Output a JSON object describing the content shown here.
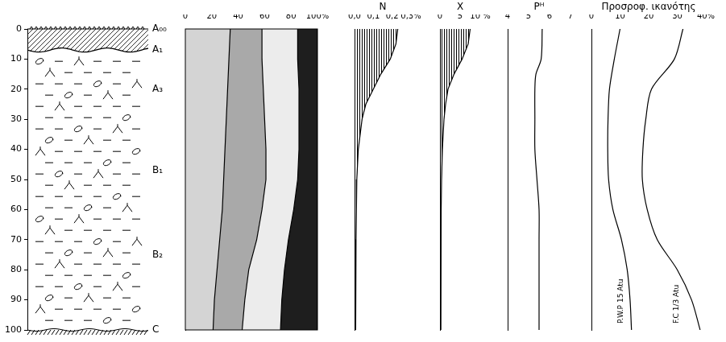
{
  "chart_data": [
    {
      "type": "profile",
      "ylim": [
        0,
        100
      ],
      "yticks": [
        0,
        10,
        20,
        30,
        40,
        50,
        60,
        70,
        80,
        90,
        100
      ],
      "tick_labels": "y",
      "horizons": [
        {
          "label": "A₀₀",
          "depth": 0
        },
        {
          "label": "A₁",
          "depth": 7
        },
        {
          "label": "A₃",
          "depth": 20
        },
        {
          "label": "B₁",
          "depth": 47
        },
        {
          "label": "B₂",
          "depth": 75
        },
        {
          "label": "C",
          "depth": 100
        }
      ]
    },
    {
      "type": "area",
      "stacked": true,
      "orientation": "horizontal",
      "tick_labels": "x",
      "xlim": [
        0,
        100
      ],
      "xticks": [
        0,
        20,
        40,
        60,
        80,
        {
          "value": 100,
          "label": "100%"
        }
      ],
      "ylim": [
        0,
        100
      ],
      "y": [
        0,
        10,
        20,
        30,
        40,
        50,
        60,
        70,
        80,
        90,
        100
      ],
      "series": [
        {
          "color": "#d4d4d4",
          "values": [
            34,
            33,
            32,
            31,
            30,
            29,
            28,
            26,
            24,
            22,
            21
          ]
        },
        {
          "color": "#a9a9a9",
          "values": [
            24,
            25,
            27,
            29,
            31,
            32,
            30,
            28,
            24,
            23,
            22
          ]
        },
        {
          "color": "#ececec",
          "values": [
            27,
            27,
            27,
            26,
            25,
            24,
            24,
            24,
            27,
            28,
            29
          ]
        },
        {
          "color": "#1e1e1e",
          "values": [
            15,
            15,
            14,
            14,
            14,
            15,
            18,
            22,
            25,
            27,
            28
          ]
        }
      ]
    },
    {
      "type": "area",
      "title": "N",
      "orientation": "horizontal",
      "tick_labels": "x",
      "xlim": [
        0,
        0.3
      ],
      "xticks": [
        {
          "value": 0,
          "label": "0,0"
        },
        {
          "value": 0.1,
          "label": "0,1"
        },
        {
          "value": 0.2,
          "label": "0,2"
        },
        {
          "value": 0.3,
          "label": "0,3%"
        }
      ],
      "ylim": [
        0,
        100
      ],
      "y": [
        0,
        5,
        10,
        15,
        20,
        25,
        30,
        40,
        50,
        60,
        70,
        80,
        90,
        100
      ],
      "series": [
        {
          "color": "#000000",
          "values": [
            0.23,
            0.22,
            0.19,
            0.14,
            0.1,
            0.06,
            0.04,
            0.02,
            0.012,
            0.01,
            0.008,
            0.007,
            0.006,
            0.005
          ]
        }
      ]
    },
    {
      "type": "area",
      "title": "X",
      "orientation": "horizontal",
      "tick_labels": "x",
      "xlim": [
        0,
        10
      ],
      "xticks": [
        0,
        5,
        {
          "value": 10,
          "label": "10 %"
        }
      ],
      "ylim": [
        0,
        100
      ],
      "y": [
        0,
        5,
        10,
        15,
        20,
        25,
        30,
        40,
        50,
        60,
        70,
        80,
        90,
        100
      ],
      "series": [
        {
          "color": "#000000",
          "values": [
            7.5,
            7,
            5.5,
            3.5,
            2,
            1.4,
            1,
            0.6,
            0.4,
            0.3,
            0.3,
            0.25,
            0.2,
            0.2
          ]
        }
      ]
    },
    {
      "type": "line",
      "title": "Pᴴ",
      "orientation": "horizontal",
      "tick_labels": "x",
      "xlim": [
        4,
        7
      ],
      "xticks": [
        4,
        5,
        6,
        7
      ],
      "ylim": [
        0,
        100
      ],
      "y": [
        0,
        10,
        15,
        20,
        30,
        40,
        50,
        60,
        70,
        80,
        90,
        100
      ],
      "series": [
        {
          "color": "#000000",
          "values": [
            5.65,
            5.6,
            5.35,
            5.3,
            5.3,
            5.3,
            5.4,
            5.5,
            5.5,
            5.5,
            5.5,
            5.5
          ]
        }
      ]
    },
    {
      "type": "line",
      "title": "Προσροφ. ικανότης",
      "orientation": "horizontal",
      "tick_labels": "x",
      "xlim": [
        0,
        40
      ],
      "xticks": [
        0,
        10,
        20,
        30,
        {
          "value": 40,
          "label": "40%"
        }
      ],
      "ylim": [
        0,
        100
      ],
      "y": [
        0,
        10,
        20,
        30,
        40,
        50,
        60,
        70,
        80,
        90,
        100
      ],
      "series": [
        {
          "name": "P.W.P 15 Atu",
          "color": "#000000",
          "values": [
            10,
            8,
            6.3,
            5.8,
            5.7,
            6,
            7.5,
            10.5,
            12.5,
            13.5,
            14
          ]
        },
        {
          "name": "F.C 1/3 Atu",
          "color": "#000000",
          "values": [
            32,
            29,
            21,
            19,
            18,
            17.8,
            19.5,
            23,
            30,
            35,
            38
          ]
        }
      ]
    }
  ]
}
